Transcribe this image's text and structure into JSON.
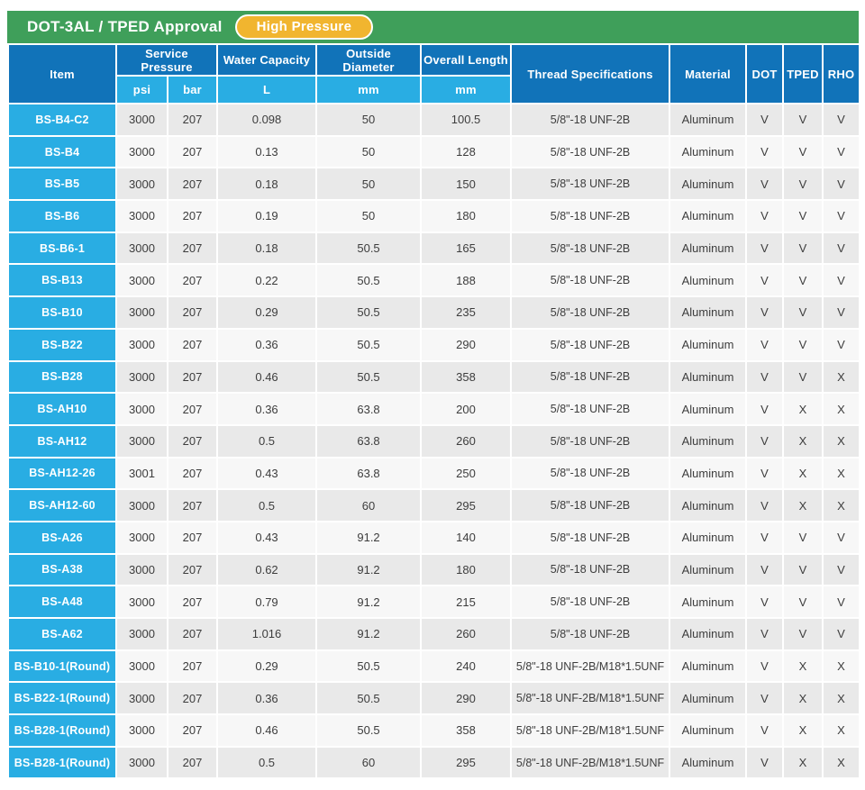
{
  "header": {
    "title": "DOT-3AL / TPED Approval",
    "badge": "High Pressure"
  },
  "colors": {
    "title_bar_green": "#3f9f5a",
    "header_dark_blue": "#1173b9",
    "header_light_blue": "#29ade3",
    "badge_yellow": "#f1b52f",
    "row_gray": "#e9e9e9",
    "row_light": "#f7f7f7",
    "body_text": "#3d3d3d"
  },
  "table": {
    "columns": {
      "item": "Item",
      "service_pressure": "Service Pressure",
      "psi": "psi",
      "bar": "bar",
      "water_capacity": "Water Capacity",
      "water_capacity_unit": "L",
      "outside_diameter": "Outside Diameter",
      "outside_diameter_unit": "mm",
      "overall_length": "Overall Length",
      "overall_length_unit": "mm",
      "thread": "Thread Specifications",
      "material": "Material",
      "dot": "DOT",
      "tped": "TPED",
      "rho": "RHO"
    },
    "rows": [
      [
        "BS-B4-C2",
        "3000",
        "207",
        "0.098",
        "50",
        "100.5",
        "5/8\"-18 UNF-2B",
        "Aluminum",
        "V",
        "V",
        "V"
      ],
      [
        "BS-B4",
        "3000",
        "207",
        "0.13",
        "50",
        "128",
        "5/8\"-18 UNF-2B",
        "Aluminum",
        "V",
        "V",
        "V"
      ],
      [
        "BS-B5",
        "3000",
        "207",
        "0.18",
        "50",
        "150",
        "5/8\"-18 UNF-2B",
        "Aluminum",
        "V",
        "V",
        "V"
      ],
      [
        "BS-B6",
        "3000",
        "207",
        "0.19",
        "50",
        "180",
        "5/8\"-18 UNF-2B",
        "Aluminum",
        "V",
        "V",
        "V"
      ],
      [
        "BS-B6-1",
        "3000",
        "207",
        "0.18",
        "50.5",
        "165",
        "5/8\"-18 UNF-2B",
        "Aluminum",
        "V",
        "V",
        "V"
      ],
      [
        "BS-B13",
        "3000",
        "207",
        "0.22",
        "50.5",
        "188",
        "5/8\"-18 UNF-2B",
        "Aluminum",
        "V",
        "V",
        "V"
      ],
      [
        "BS-B10",
        "3000",
        "207",
        "0.29",
        "50.5",
        "235",
        "5/8\"-18 UNF-2B",
        "Aluminum",
        "V",
        "V",
        "V"
      ],
      [
        "BS-B22",
        "3000",
        "207",
        "0.36",
        "50.5",
        "290",
        "5/8\"-18 UNF-2B",
        "Aluminum",
        "V",
        "V",
        "V"
      ],
      [
        "BS-B28",
        "3000",
        "207",
        "0.46",
        "50.5",
        "358",
        "5/8\"-18 UNF-2B",
        "Aluminum",
        "V",
        "V",
        "X"
      ],
      [
        "BS-AH10",
        "3000",
        "207",
        "0.36",
        "63.8",
        "200",
        "5/8\"-18 UNF-2B",
        "Aluminum",
        "V",
        "X",
        "X"
      ],
      [
        "BS-AH12",
        "3000",
        "207",
        "0.5",
        "63.8",
        "260",
        "5/8\"-18 UNF-2B",
        "Aluminum",
        "V",
        "X",
        "X"
      ],
      [
        "BS-AH12-26",
        "3001",
        "207",
        "0.43",
        "63.8",
        "250",
        "5/8\"-18 UNF-2B",
        "Aluminum",
        "V",
        "X",
        "X"
      ],
      [
        "BS-AH12-60",
        "3000",
        "207",
        "0.5",
        "60",
        "295",
        "5/8\"-18 UNF-2B",
        "Aluminum",
        "V",
        "X",
        "X"
      ],
      [
        "BS-A26",
        "3000",
        "207",
        "0.43",
        "91.2",
        "140",
        "5/8\"-18 UNF-2B",
        "Aluminum",
        "V",
        "V",
        "V"
      ],
      [
        "BS-A38",
        "3000",
        "207",
        "0.62",
        "91.2",
        "180",
        "5/8\"-18 UNF-2B",
        "Aluminum",
        "V",
        "V",
        "V"
      ],
      [
        "BS-A48",
        "3000",
        "207",
        "0.79",
        "91.2",
        "215",
        "5/8\"-18 UNF-2B",
        "Aluminum",
        "V",
        "V",
        "V"
      ],
      [
        "BS-A62",
        "3000",
        "207",
        "1.016",
        "91.2",
        "260",
        "5/8\"-18 UNF-2B",
        "Aluminum",
        "V",
        "V",
        "V"
      ],
      [
        "BS-B10-1(Round)",
        "3000",
        "207",
        "0.29",
        "50.5",
        "240",
        "5/8\"-18 UNF-2B/M18*1.5UNF",
        "Aluminum",
        "V",
        "X",
        "X"
      ],
      [
        "BS-B22-1(Round)",
        "3000",
        "207",
        "0.36",
        "50.5",
        "290",
        "5/8\"-18 UNF-2B/M18*1.5UNF",
        "Aluminum",
        "V",
        "X",
        "X"
      ],
      [
        "BS-B28-1(Round)",
        "3000",
        "207",
        "0.46",
        "50.5",
        "358",
        "5/8\"-18 UNF-2B/M18*1.5UNF",
        "Aluminum",
        "V",
        "X",
        "X"
      ],
      [
        "BS-B28-1(Round)",
        "3000",
        "207",
        "0.5",
        "60",
        "295",
        "5/8\"-18 UNF-2B/M18*1.5UNF",
        "Aluminum",
        "V",
        "X",
        "X"
      ]
    ]
  }
}
